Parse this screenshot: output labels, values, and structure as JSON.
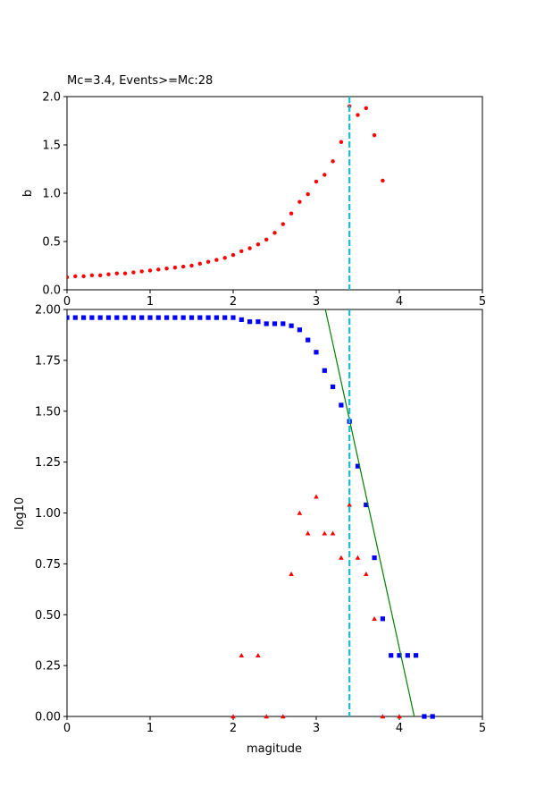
{
  "figure_title": "Mc=3.4, Events>=Mc:28",
  "colors": {
    "bvalue": "#ff0000",
    "cumulative": "#0000ff",
    "noncumulative": "#ff0000",
    "fit": "#008000",
    "mc_line": "#17becf"
  },
  "chart_data": [
    {
      "type": "scatter",
      "title": "Mc=3.4, Events>=Mc:28",
      "xlabel": "",
      "ylabel": "b",
      "xlim": [
        0,
        5
      ],
      "ylim": [
        0,
        2.0
      ],
      "xticks": [
        0,
        1,
        2,
        3,
        4,
        5
      ],
      "yticks": [
        0.0,
        0.5,
        1.0,
        1.5,
        2.0
      ],
      "ytick_labels": [
        "0.0",
        "0.5",
        "1.0",
        "1.5",
        "2.0"
      ],
      "grid": false,
      "mc": 3.4,
      "series": [
        {
          "marker": "circle",
          "x": [
            0.0,
            0.1,
            0.2,
            0.3,
            0.4,
            0.5,
            0.6,
            0.7,
            0.8,
            0.9,
            1.0,
            1.1,
            1.2,
            1.3,
            1.4,
            1.5,
            1.6,
            1.7,
            1.8,
            1.9,
            2.0,
            2.1,
            2.2,
            2.3,
            2.4,
            2.5,
            2.6,
            2.7,
            2.8,
            2.9,
            3.0,
            3.1,
            3.2,
            3.3,
            3.4,
            3.5,
            3.6,
            3.7,
            3.8
          ],
          "y": [
            0.13,
            0.14,
            0.14,
            0.15,
            0.15,
            0.16,
            0.17,
            0.17,
            0.18,
            0.19,
            0.2,
            0.21,
            0.22,
            0.23,
            0.24,
            0.25,
            0.27,
            0.29,
            0.31,
            0.33,
            0.36,
            0.4,
            0.43,
            0.47,
            0.52,
            0.59,
            0.68,
            0.79,
            0.91,
            0.99,
            1.12,
            1.19,
            1.33,
            1.53,
            1.9,
            1.81,
            1.88,
            1.6,
            1.13
          ]
        }
      ]
    },
    {
      "type": "scatter",
      "title": "",
      "xlabel": "magitude",
      "ylabel": "log10",
      "xlim": [
        0,
        5
      ],
      "ylim": [
        0,
        2.0
      ],
      "xticks": [
        0,
        1,
        2,
        3,
        4,
        5
      ],
      "yticks": [
        0.0,
        0.25,
        0.5,
        0.75,
        1.0,
        1.25,
        1.5,
        1.75,
        2.0
      ],
      "ytick_labels": [
        "0.00",
        "0.25",
        "0.50",
        "0.75",
        "1.00",
        "1.25",
        "1.50",
        "1.75",
        "2.00"
      ],
      "grid": false,
      "mc": 3.4,
      "series": [
        {
          "marker": "square",
          "x": [
            0.0,
            0.1,
            0.2,
            0.3,
            0.4,
            0.5,
            0.6,
            0.7,
            0.8,
            0.9,
            1.0,
            1.1,
            1.2,
            1.3,
            1.4,
            1.5,
            1.6,
            1.7,
            1.8,
            1.9,
            2.0,
            2.1,
            2.2,
            2.3,
            2.4,
            2.5,
            2.6,
            2.7,
            2.8,
            2.9,
            3.0,
            3.1,
            3.2,
            3.3,
            3.4,
            3.5,
            3.6,
            3.7,
            3.8,
            3.9,
            4.0,
            4.1,
            4.2,
            4.3,
            4.4
          ],
          "y": [
            1.96,
            1.96,
            1.96,
            1.96,
            1.96,
            1.96,
            1.96,
            1.96,
            1.96,
            1.96,
            1.96,
            1.96,
            1.96,
            1.96,
            1.96,
            1.96,
            1.96,
            1.96,
            1.96,
            1.96,
            1.96,
            1.95,
            1.94,
            1.94,
            1.93,
            1.93,
            1.93,
            1.92,
            1.9,
            1.85,
            1.79,
            1.7,
            1.62,
            1.53,
            1.45,
            1.23,
            1.04,
            0.78,
            0.48,
            0.3,
            0.3,
            0.3,
            0.3,
            0.0,
            0.0
          ]
        },
        {
          "marker": "triangle",
          "x": [
            2.0,
            2.1,
            2.3,
            2.4,
            2.6,
            2.7,
            2.8,
            2.9,
            3.0,
            3.1,
            3.2,
            3.3,
            3.4,
            3.5,
            3.6,
            3.7,
            3.8,
            4.0
          ],
          "y": [
            0.0,
            0.3,
            0.3,
            0.0,
            0.0,
            0.7,
            1.0,
            0.9,
            1.08,
            0.9,
            0.9,
            0.78,
            1.04,
            0.78,
            0.7,
            0.48,
            0.0,
            0.0
          ]
        },
        {
          "type": "line",
          "x": [
            3.11,
            4.18
          ],
          "y": [
            2.0,
            0.0
          ]
        }
      ]
    }
  ]
}
